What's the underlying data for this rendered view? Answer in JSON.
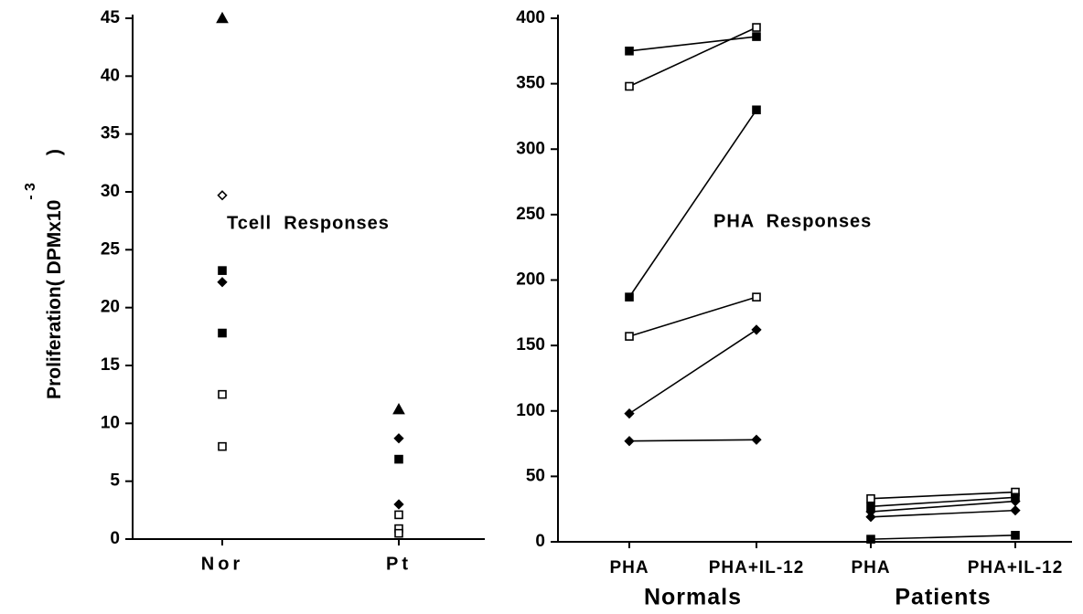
{
  "chart_data": [
    {
      "type": "dot",
      "ylabel": "Proliferation( DPMx10",
      "ylabel_exponent": "- 3",
      "ylabel_end": ")",
      "annotation": "Tcell  Responses",
      "ylim": [
        0,
        45
      ],
      "yticks": [
        0,
        5,
        10,
        15,
        20,
        25,
        30,
        35,
        40,
        45
      ],
      "groups": [
        {
          "category": "Nor",
          "values": [
            45,
            29.7,
            23.2,
            22.2,
            17.8,
            12.5,
            8
          ],
          "markers": [
            "triangle",
            "open-diamond",
            "filled-square",
            "diamond",
            "filled-square",
            "open-square",
            "open-square"
          ]
        },
        {
          "category": "Pt",
          "values": [
            11.2,
            8.7,
            6.9,
            3,
            2.1,
            0.9,
            0.5
          ],
          "markers": [
            "triangle",
            "diamond",
            "filled-square",
            "diamond",
            "open-square",
            "open-square",
            "open-square"
          ]
        }
      ]
    },
    {
      "type": "paired-line",
      "annotation": "PHA  Responses",
      "ylim": [
        0,
        400
      ],
      "yticks": [
        0,
        50,
        100,
        150,
        200,
        250,
        300,
        350,
        400
      ],
      "groups": [
        {
          "label": "Normals",
          "categories": [
            "PHA",
            "PHA+IL-12"
          ],
          "lines": [
            {
              "values": [
                375,
                386
              ],
              "marker": "filled-square"
            },
            {
              "values": [
                348,
                393
              ],
              "marker": "open-square"
            },
            {
              "values": [
                187,
                330
              ],
              "marker": "filled-square"
            },
            {
              "values": [
                157,
                187
              ],
              "marker": "open-square"
            },
            {
              "values": [
                98,
                162
              ],
              "marker": "diamond"
            },
            {
              "values": [
                77,
                78
              ],
              "marker": "diamond"
            }
          ]
        },
        {
          "label": "Patients",
          "categories": [
            "PHA",
            "PHA+IL-12"
          ],
          "lines": [
            {
              "values": [
                33,
                38
              ],
              "marker": "open-square"
            },
            {
              "values": [
                27,
                34
              ],
              "marker": "filled-square"
            },
            {
              "values": [
                23,
                31
              ],
              "marker": "diamond"
            },
            {
              "values": [
                19,
                24
              ],
              "marker": "diamond"
            },
            {
              "values": [
                2,
                5
              ],
              "marker": "filled-square"
            }
          ]
        }
      ]
    }
  ]
}
